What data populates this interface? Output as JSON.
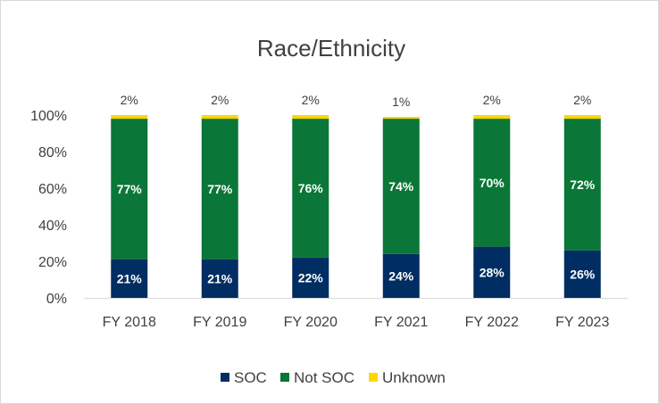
{
  "chart_data": {
    "type": "bar",
    "stacked": true,
    "title": "Race/Ethnicity",
    "categories": [
      "FY 2018",
      "FY 2019",
      "FY 2020",
      "FY 2021",
      "FY 2022",
      "FY 2023"
    ],
    "series": [
      {
        "name": "SOC",
        "color": "#002d62",
        "values": [
          21,
          21,
          22,
          24,
          28,
          26
        ],
        "labels": [
          "21%",
          "21%",
          "22%",
          "24%",
          "28%",
          "26%"
        ]
      },
      {
        "name": "Not SOC",
        "color": "#0a7637",
        "values": [
          77,
          77,
          76,
          74,
          70,
          72
        ],
        "labels": [
          "77%",
          "77%",
          "76%",
          "74%",
          "70%",
          "72%"
        ]
      },
      {
        "name": "Unknown",
        "color": "#ffd700",
        "values": [
          2,
          2,
          2,
          1,
          2,
          2
        ],
        "labels": [
          "2%",
          "2%",
          "2%",
          "1%",
          "2%",
          "2%"
        ]
      }
    ],
    "ylim": [
      0,
      100
    ],
    "yticks": [
      "0%",
      "20%",
      "40%",
      "60%",
      "80%",
      "100%"
    ],
    "grid": false,
    "legend": "bottom"
  }
}
